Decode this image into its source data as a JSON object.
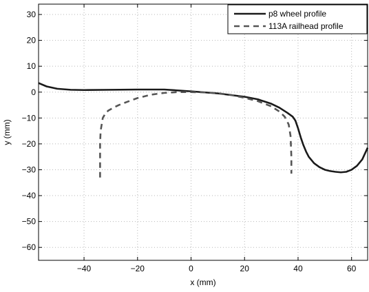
{
  "chart_data": {
    "type": "line",
    "xlabel": "x (mm)",
    "ylabel": "y (mm)",
    "xlim": [
      -57,
      66
    ],
    "ylim": [
      -65,
      34
    ],
    "xticks": [
      -40,
      -20,
      0,
      20,
      40,
      60
    ],
    "yticks": [
      -60,
      -50,
      -40,
      -30,
      -20,
      -10,
      0,
      10,
      20,
      30
    ],
    "grid": true,
    "legend_position": "top-right",
    "series": [
      {
        "name": "p8 wheel profile",
        "color": "#1a1a1a",
        "style": "solid",
        "x": [
          -57,
          -54,
          -50,
          -45,
          -40,
          -30,
          -20,
          -10,
          0,
          10,
          20,
          25,
          30,
          33,
          36,
          38,
          39,
          40,
          41,
          42,
          43,
          44,
          46,
          48,
          50,
          52,
          54,
          56,
          58,
          60,
          62,
          64,
          66
        ],
        "y": [
          3.5,
          2.2,
          1.3,
          0.9,
          0.8,
          0.9,
          1.0,
          1.0,
          0.3,
          -0.5,
          -1.8,
          -2.8,
          -4.5,
          -6.0,
          -8.0,
          -9.5,
          -11.0,
          -14.0,
          -17.5,
          -20.5,
          -23.0,
          -25.0,
          -27.5,
          -29.0,
          -30.0,
          -30.5,
          -30.8,
          -31.0,
          -30.8,
          -30.0,
          -28.5,
          -26.0,
          -21.5
        ]
      },
      {
        "name": "113A railhead profile",
        "color": "#555555",
        "style": "dashed",
        "x": [
          -34,
          -34,
          -33.8,
          -33,
          -32,
          -31,
          -29,
          -27,
          -24,
          -20,
          -15,
          -10,
          -5,
          0,
          5,
          10,
          15,
          20,
          25,
          30,
          33,
          35,
          36.5,
          37.2,
          37.5,
          37.5
        ],
        "y": [
          -33,
          -20,
          -15,
          -10,
          -8.2,
          -7.2,
          -6.0,
          -5.0,
          -3.8,
          -2.3,
          -1.0,
          -0.3,
          0.0,
          0.0,
          -0.1,
          -0.4,
          -1.1,
          -2.2,
          -3.5,
          -5.5,
          -7.5,
          -9.5,
          -12.5,
          -17.0,
          -25.0,
          -31.5
        ]
      }
    ]
  }
}
